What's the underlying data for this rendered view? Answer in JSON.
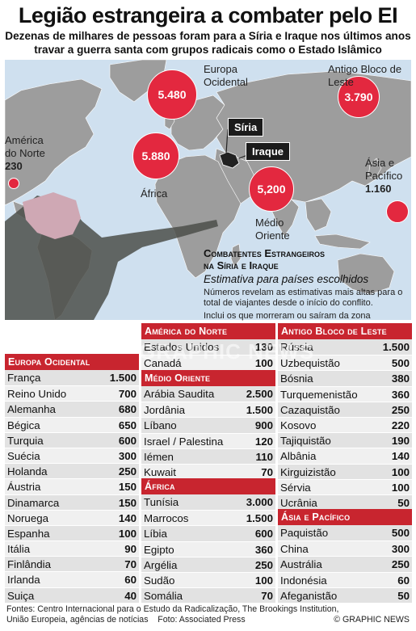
{
  "title": "Legião estrangeira a combater pelo EI",
  "subtitle": "Dezenas de milhares de pessoas foram para a Síria e Iraque nos últimos anos travar a guerra santa com grupos radicais como o Estado Islâmico",
  "map": {
    "regions": [
      {
        "label_line1": "Europa",
        "label_line2": "Ocidental",
        "value": "5.480"
      },
      {
        "label_line1": "Antigo Bloco de",
        "label_line2": "Leste",
        "value": "3.790"
      },
      {
        "label_line1": "América",
        "label_line2": "do Norte",
        "value": "230"
      },
      {
        "label_line1": "África",
        "label_line2": "",
        "value": "5.880"
      },
      {
        "label_line1": "Médio",
        "label_line2": "Oriente",
        "value": "5,200"
      },
      {
        "label_line1": "Ásia e",
        "label_line2": "Pacífico",
        "value": "1.160"
      }
    ],
    "tags": {
      "siria": "Síria",
      "iraque": "Iraque"
    }
  },
  "info": {
    "heading_line1": "Combatentes Estrangeiros",
    "heading_line2": "na Síria e Iraque",
    "sub": "Estimativa para países escolhidos",
    "note1": "Números revelam as estimativas mais altas para o total de viajantes desde o início do conflito.",
    "note2": "Inclui os que morreram ou saíram da zona"
  },
  "watermark": "GRAPHIC NEWS",
  "tables": {
    "europa_ocidental": {
      "title": "Europa Ocidental",
      "rows": [
        {
          "c": "França",
          "v": "1.500"
        },
        {
          "c": "Reino Unido",
          "v": "700"
        },
        {
          "c": "Alemanha",
          "v": "680"
        },
        {
          "c": "Bégica",
          "v": "650"
        },
        {
          "c": "Turquia",
          "v": "600"
        },
        {
          "c": "Suécia",
          "v": "300"
        },
        {
          "c": "Holanda",
          "v": "250"
        },
        {
          "c": "Áustria",
          "v": "150"
        },
        {
          "c": "Dinamarca",
          "v": "150"
        },
        {
          "c": "Noruega",
          "v": "140"
        },
        {
          "c": "Espanha",
          "v": "100"
        },
        {
          "c": "Itália",
          "v": "90"
        },
        {
          "c": "Finlândia",
          "v": "70"
        },
        {
          "c": "Irlanda",
          "v": "60"
        },
        {
          "c": "Suiça",
          "v": "40"
        }
      ]
    },
    "america_norte": {
      "title": "América do Norte",
      "rows": [
        {
          "c": "Estados Unidos",
          "v": "130"
        },
        {
          "c": "Canadá",
          "v": "100"
        }
      ]
    },
    "medio_oriente": {
      "title": "Médio Oriente",
      "rows": [
        {
          "c": "Arábia Saudita",
          "v": "2.500"
        },
        {
          "c": "Jordânia",
          "v": "1.500"
        },
        {
          "c": "Líbano",
          "v": "900"
        },
        {
          "c": "Israel / Palestina",
          "v": "120"
        },
        {
          "c": "Iémen",
          "v": "110"
        },
        {
          "c": "Kuwait",
          "v": "70"
        }
      ]
    },
    "africa": {
      "title": "África",
      "rows": [
        {
          "c": "Tunísia",
          "v": "3.000"
        },
        {
          "c": "Marrocos",
          "v": "1.500"
        },
        {
          "c": "Líbia",
          "v": "600"
        },
        {
          "c": "Egipto",
          "v": "360"
        },
        {
          "c": "Argélia",
          "v": "250"
        },
        {
          "c": "Sudão",
          "v": "100"
        },
        {
          "c": "Somália",
          "v": "70"
        }
      ]
    },
    "bloco_leste": {
      "title": "Antigo Bloco de Leste",
      "rows": [
        {
          "c": "Rússia",
          "v": "1.500"
        },
        {
          "c": "Uzbequistão",
          "v": "500"
        },
        {
          "c": "Bósnia",
          "v": "380"
        },
        {
          "c": "Turquemenistão",
          "v": "360"
        },
        {
          "c": "Cazaquistão",
          "v": "250"
        },
        {
          "c": "Kosovo",
          "v": "220"
        },
        {
          "c": "Tajiquistão",
          "v": "190"
        },
        {
          "c": "Albânia",
          "v": "140"
        },
        {
          "c": "Kirguizistão",
          "v": "100"
        },
        {
          "c": "Sérvia",
          "v": "100"
        },
        {
          "c": "Ucrânia",
          "v": "50"
        }
      ]
    },
    "asia_pacifico": {
      "title": "Ásia e Pacífico",
      "rows": [
        {
          "c": "Paquistão",
          "v": "500"
        },
        {
          "c": "China",
          "v": "300"
        },
        {
          "c": "Austrália",
          "v": "250"
        },
        {
          "c": "Indonésia",
          "v": "60"
        },
        {
          "c": "Afeganistão",
          "v": "50"
        }
      ]
    }
  },
  "footer": {
    "line1": "Fontes: Centro Internacional para o Estudo da Radicalização, The Brookings Institution,",
    "line2": "União Europeia, agências de notícias    Foto: Associated Press",
    "copyright": "© GRAPHIC NEWS"
  }
}
